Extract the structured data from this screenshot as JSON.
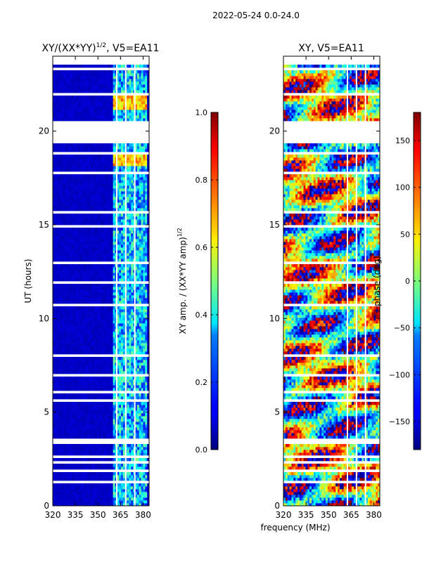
{
  "figure": {
    "suptitle": "2022-05-24 0.0-24.0",
    "xlabel": "frequency (MHz)"
  },
  "chart_data": [
    {
      "type": "heatmap",
      "title": "XY/(XX*YY)",
      "title_sup": "1/2",
      "title_suffix": ", V5=EA11",
      "xlabel": "",
      "ylabel": "UT (hours)",
      "xlim": [
        320,
        384
      ],
      "ylim": [
        0,
        24
      ],
      "xticks": [
        320,
        335,
        350,
        365,
        380
      ],
      "yticks": [
        0,
        5,
        10,
        15,
        20
      ],
      "colormap": "jet",
      "colorbar": {
        "label": "XY amp. / (XX*YY amp)",
        "label_sup": "1/2",
        "range": [
          0.0,
          1.0
        ],
        "ticks": [
          "0.0",
          "0.2",
          "0.4",
          "0.6",
          "0.8",
          "1.0"
        ]
      },
      "description_values": {
        "background_level": 0.05,
        "bright_band_mhz": [
          360,
          382
        ],
        "bright_band_level": 0.35,
        "hot_spots_level": 0.8
      }
    },
    {
      "type": "heatmap",
      "title": "XY, V5=EA11",
      "xlabel": "",
      "ylabel": "",
      "xlim": [
        320,
        384
      ],
      "ylim": [
        0,
        24
      ],
      "xticks": [
        320,
        335,
        350,
        365,
        380
      ],
      "yticks": [
        0,
        5,
        10,
        15,
        20
      ],
      "colormap": "jet",
      "colorbar": {
        "label": "phase (deg)",
        "range": [
          -180,
          180
        ],
        "ticks": [
          "−150",
          "−100",
          "−50",
          "0",
          "50",
          "100",
          "150"
        ]
      }
    }
  ],
  "gaps_hours": [
    [
      0.55,
      0.62
    ],
    [
      0.9,
      0.97
    ],
    [
      1.25,
      1.32
    ],
    [
      1.85,
      2.0
    ],
    [
      2.25,
      2.35
    ],
    [
      2.6,
      2.7
    ],
    [
      3.35,
      3.6
    ],
    [
      5.6,
      5.75
    ],
    [
      6.0,
      6.12
    ],
    [
      6.95,
      7.05
    ],
    [
      8.0,
      8.08
    ],
    [
      8.5,
      8.58
    ],
    [
      9.15,
      9.22
    ],
    [
      10.6,
      10.75
    ],
    [
      11.9,
      12.0
    ],
    [
      12.9,
      13.0
    ],
    [
      14.8,
      14.95
    ],
    [
      15.6,
      15.7
    ],
    [
      16.6,
      16.7
    ],
    [
      17.7,
      17.78
    ],
    [
      18.8,
      18.95
    ],
    [
      19.35,
      20.6
    ],
    [
      21.1,
      21.2
    ],
    [
      21.9,
      22.0
    ],
    [
      23.3,
      23.4
    ],
    [
      23.6,
      23.7
    ]
  ],
  "vgaps_mhz": [
    362.5,
    368.5,
    374.5
  ]
}
